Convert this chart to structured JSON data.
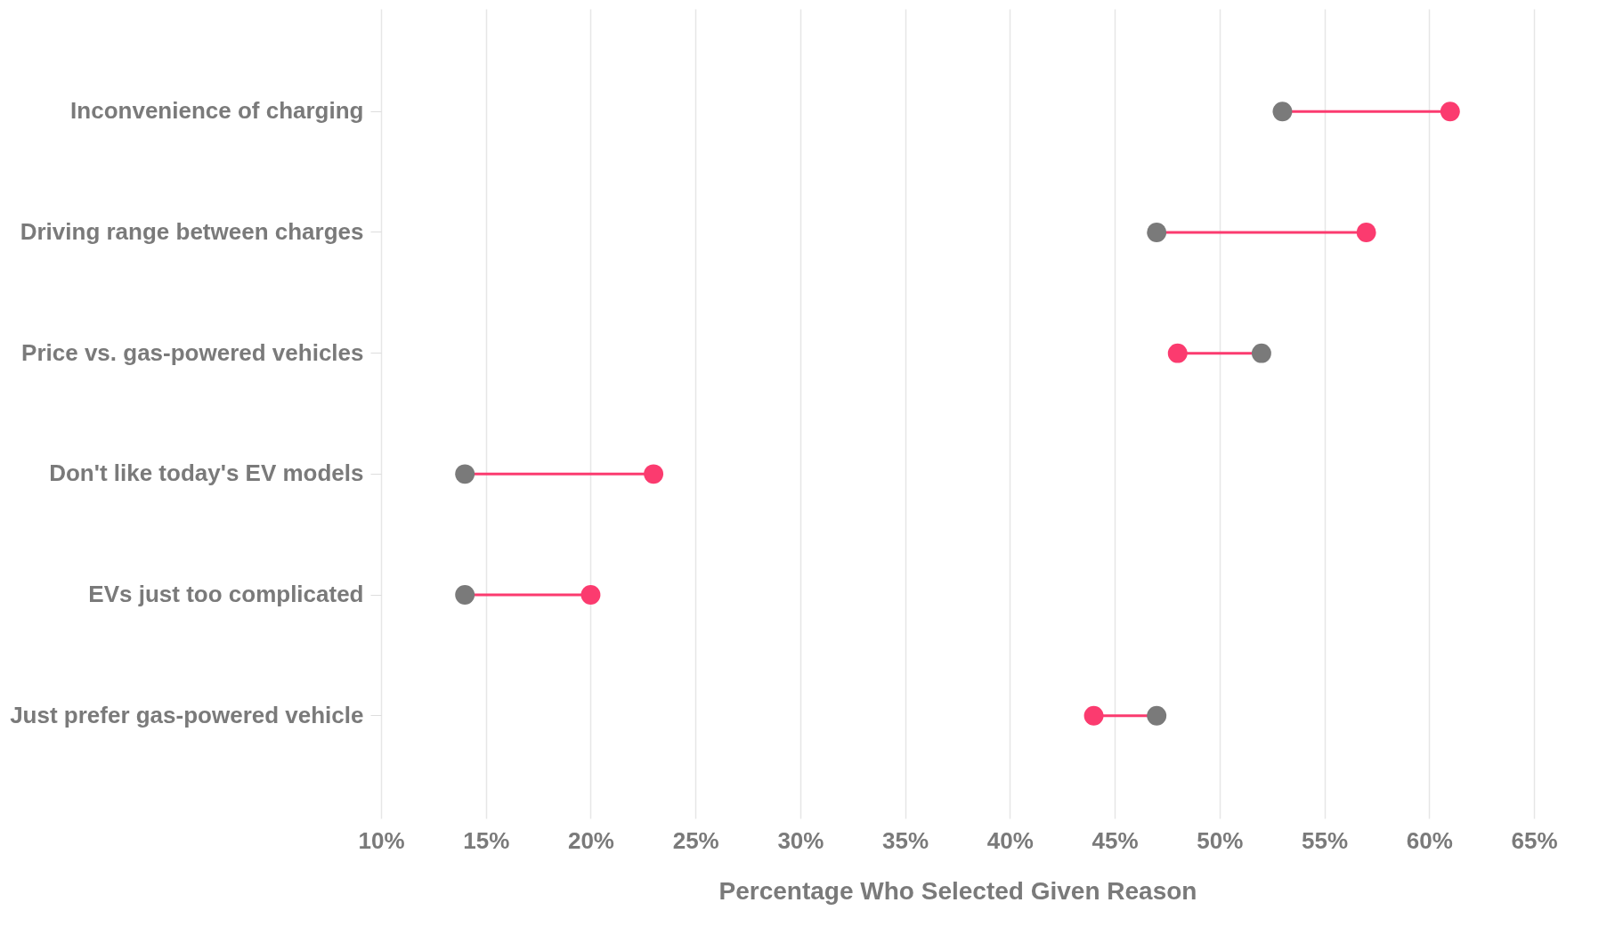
{
  "chart_data": {
    "type": "scatter",
    "orientation": "horizontal",
    "xlabel": "Percentage Who Selected Given Reason",
    "categories": [
      "Inconvenience of charging",
      "Driving range between charges",
      "Price vs. gas-powered vehicles",
      "Don't like today's EV models",
      "EVs just too complicated",
      "Just prefer gas-powered vehicle"
    ],
    "series": [
      {
        "color": "#7a7a7a",
        "values": [
          53,
          47,
          52,
          14,
          14,
          47
        ]
      },
      {
        "color": "#fb3b6f",
        "values": [
          61,
          57,
          48,
          23,
          20,
          44
        ]
      }
    ],
    "xlim": [
      10,
      65
    ],
    "xticks": [
      {
        "value": 10,
        "label": "10%"
      },
      {
        "value": 15,
        "label": "15%"
      },
      {
        "value": 20,
        "label": "20%"
      },
      {
        "value": 25,
        "label": "25%"
      },
      {
        "value": 30,
        "label": "30%"
      },
      {
        "value": 35,
        "label": "35%"
      },
      {
        "value": 40,
        "label": "40%"
      },
      {
        "value": 45,
        "label": "45%"
      },
      {
        "value": 50,
        "label": "50%"
      },
      {
        "value": 55,
        "label": "55%"
      },
      {
        "value": 60,
        "label": "60%"
      },
      {
        "value": 65,
        "label": "65%"
      }
    ],
    "grid": "x",
    "marker": "circle",
    "legend": false
  }
}
